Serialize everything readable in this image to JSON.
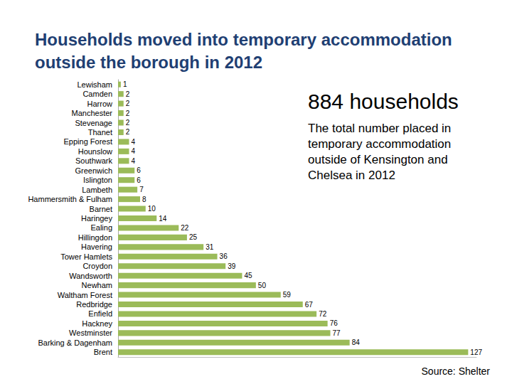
{
  "chart_data": {
    "type": "bar",
    "title": "Households moved into temporary accommodation outside the borough in 2012",
    "annotations": [
      "884 households",
      "The total number placed in temporary accommodation outside of Kensington and Chelsea in 2012",
      "Source: Shelter"
    ],
    "orientation": "horizontal",
    "categories": [
      "Lewisham",
      "Camden",
      "Harrow",
      "Manchester",
      "Stevenage",
      "Thanet",
      "Epping Forest",
      "Hounslow",
      "Southwark",
      "Greenwich",
      "Islington",
      "Lambeth",
      "Hammersmith & Fulham",
      "Barnet",
      "Haringey",
      "Ealing",
      "Hillingdon",
      "Havering",
      "Tower Hamlets",
      "Croydon",
      "Wandsworth",
      "Newham",
      "Waltham Forest",
      "Redbridge",
      "Enfield",
      "Hackney",
      "Westminster",
      "Barking & Dagenham",
      "Brent"
    ],
    "values": [
      1,
      2,
      2,
      2,
      2,
      2,
      4,
      4,
      4,
      6,
      6,
      7,
      8,
      10,
      14,
      22,
      25,
      31,
      36,
      39,
      45,
      50,
      59,
      67,
      72,
      76,
      77,
      84,
      127
    ],
    "color": "#9bbb59",
    "xlim": [
      0,
      130
    ],
    "data_labels": true,
    "tick_labels": "y",
    "grid": false
  }
}
